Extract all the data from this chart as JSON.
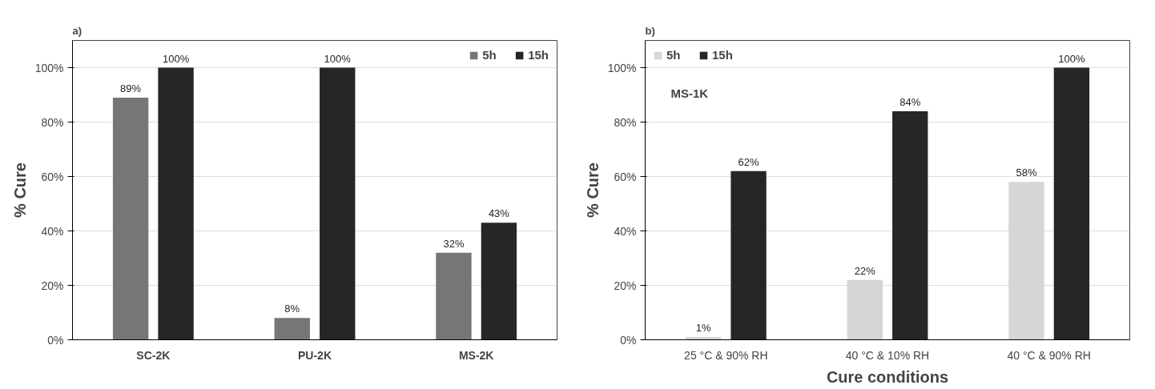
{
  "chart_data": [
    {
      "type": "bar",
      "title": "a)",
      "ylabel": "% Cure",
      "categories": [
        "SC-2K",
        "PU-2K",
        "MS-2K"
      ],
      "series": [
        {
          "name": "5h",
          "color": "#767676",
          "values": [
            89,
            8,
            32
          ],
          "value_labels": [
            "89%",
            "8%",
            "32%"
          ]
        },
        {
          "name": "15h",
          "color": "#262626",
          "values": [
            100,
            100,
            43
          ],
          "value_labels": [
            "100%",
            "100%",
            "43%"
          ]
        }
      ],
      "ylim": [
        0,
        110
      ],
      "yticks": [
        {
          "value": 0,
          "label": "0%"
        },
        {
          "value": 20,
          "label": "20%"
        },
        {
          "value": 40,
          "label": "40%"
        },
        {
          "value": 60,
          "label": "60%"
        },
        {
          "value": 80,
          "label": "80%"
        },
        {
          "value": 100,
          "label": "100%"
        }
      ],
      "grid": "y",
      "legend": "top right"
    },
    {
      "type": "bar",
      "title": "b)",
      "ylabel": "% Cure",
      "xlabel": "Cure conditions",
      "categories": [
        "25 °C & 90% RH",
        "40 °C & 10% RH",
        "40 °C & 90% RH"
      ],
      "series": [
        {
          "name": "5h",
          "color": "#d6d6d6",
          "values": [
            1,
            22,
            58
          ],
          "value_labels": [
            "1%",
            "22%",
            "58%"
          ]
        },
        {
          "name": "15h",
          "color": "#262626",
          "values": [
            62,
            84,
            100
          ],
          "value_labels": [
            "62%",
            "84%",
            "100%"
          ]
        }
      ],
      "ylim": [
        0,
        110
      ],
      "yticks": [
        {
          "value": 0,
          "label": "0%"
        },
        {
          "value": 20,
          "label": "20%"
        },
        {
          "value": 40,
          "label": "40%"
        },
        {
          "value": 60,
          "label": "60%"
        },
        {
          "value": 80,
          "label": "80%"
        },
        {
          "value": 100,
          "label": "100%"
        }
      ],
      "grid": "y",
      "legend": "top left",
      "annotations": [
        "MS-1K"
      ]
    }
  ]
}
